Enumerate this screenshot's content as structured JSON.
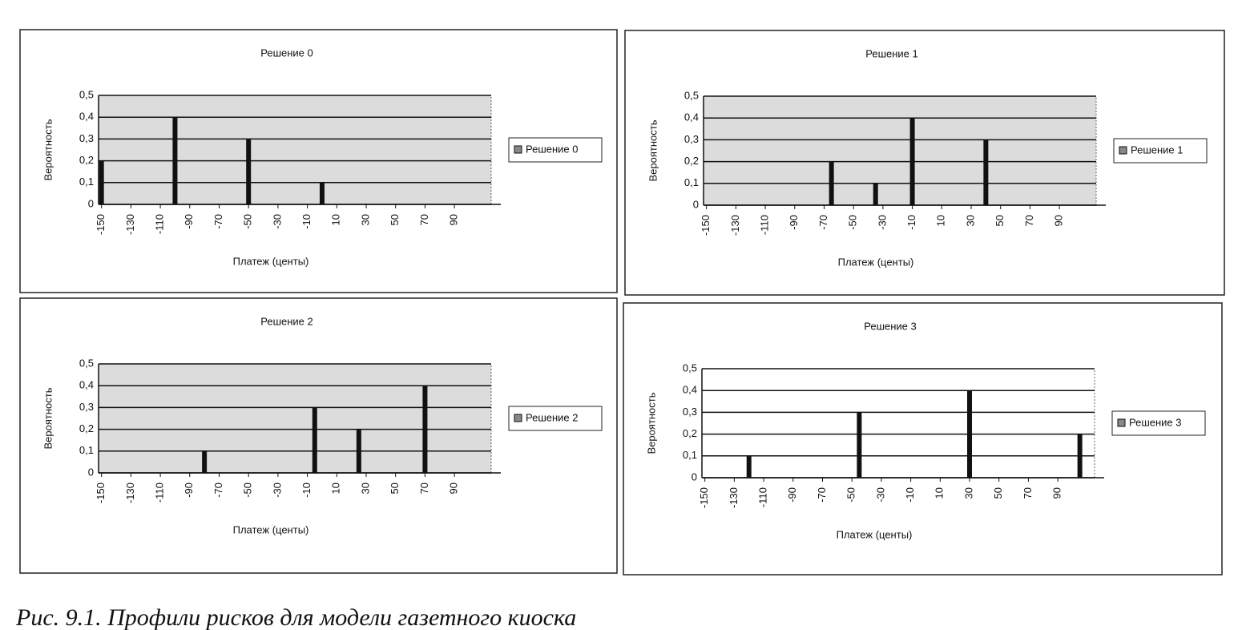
{
  "chart_data": [
    {
      "type": "bar",
      "title": "Решение 0",
      "xlabel": "Платеж (центы)",
      "ylabel": "Вероятность",
      "x": [
        -150,
        -100,
        -50,
        0
      ],
      "series": [
        {
          "name": "Решение 0",
          "color": "#111111",
          "values": [
            0.2,
            0.4,
            0.3,
            0.1
          ]
        }
      ],
      "xlim": [
        -152,
        115
      ],
      "xticks": [
        -150,
        -130,
        -110,
        -90,
        -70,
        -50,
        -30,
        -10,
        10,
        30,
        50,
        70,
        90
      ],
      "ylim": [
        0,
        0.5
      ],
      "yticks": [
        0,
        {
          "value": 0.1,
          "label": "0,1"
        },
        {
          "value": 0.2,
          "label": "0,2"
        },
        {
          "value": 0.3,
          "label": "0,3"
        },
        {
          "value": 0.4,
          "label": "0,4"
        },
        {
          "value": 0.5,
          "label": "0,5"
        }
      ],
      "grid": true,
      "plot_background": "#dcdcdc",
      "legend": "right"
    },
    {
      "type": "bar",
      "title": "Решение 1",
      "xlabel": "Платеж (центы)",
      "ylabel": "Вероятность",
      "x": [
        -65,
        -35,
        -10,
        40
      ],
      "series": [
        {
          "name": "Решение 1",
          "color": "#111111",
          "values": [
            0.2,
            0.1,
            0.4,
            0.3
          ]
        }
      ],
      "xlim": [
        -152,
        115
      ],
      "xticks": [
        -150,
        -130,
        -110,
        -90,
        -70,
        -50,
        -30,
        -10,
        10,
        30,
        50,
        70,
        90
      ],
      "ylim": [
        0,
        0.5
      ],
      "yticks": [
        0,
        {
          "value": 0.1,
          "label": "0,1"
        },
        {
          "value": 0.2,
          "label": "0,2"
        },
        {
          "value": 0.3,
          "label": "0,3"
        },
        {
          "value": 0.4,
          "label": "0,4"
        },
        {
          "value": 0.5,
          "label": "0,5"
        }
      ],
      "grid": true,
      "plot_background": "#dcdcdc",
      "legend": "right"
    },
    {
      "type": "bar",
      "title": "Решение 2",
      "xlabel": "Платеж (центы)",
      "ylabel": "Вероятность",
      "x": [
        -80,
        -5,
        25,
        70
      ],
      "series": [
        {
          "name": "Решение 2",
          "color": "#111111",
          "values": [
            0.1,
            0.3,
            0.2,
            0.4
          ]
        }
      ],
      "xlim": [
        -152,
        115
      ],
      "xticks": [
        -150,
        -130,
        -110,
        -90,
        -70,
        -50,
        -30,
        -10,
        10,
        30,
        50,
        70,
        90
      ],
      "ylim": [
        0,
        0.5
      ],
      "yticks": [
        0,
        {
          "value": 0.1,
          "label": "0,1"
        },
        {
          "value": 0.2,
          "label": "0,2"
        },
        {
          "value": 0.3,
          "label": "0,3"
        },
        {
          "value": 0.4,
          "label": "0,4"
        },
        {
          "value": 0.5,
          "label": "0,5"
        }
      ],
      "grid": true,
      "plot_background": "#dcdcdc",
      "legend": "right"
    },
    {
      "type": "bar",
      "title": "Решение 3",
      "xlabel": "Платеж (центы)",
      "ylabel": "Вероятность",
      "x": [
        -120,
        -45,
        30,
        105
      ],
      "series": [
        {
          "name": "Решение 3",
          "color": "#111111",
          "values": [
            0.1,
            0.3,
            0.4,
            0.2
          ]
        }
      ],
      "xlim": [
        -152,
        115
      ],
      "xticks": [
        -150,
        -130,
        -110,
        -90,
        -70,
        -50,
        -30,
        -10,
        10,
        30,
        50,
        70,
        90
      ],
      "ylim": [
        0,
        0.5
      ],
      "yticks": [
        0,
        {
          "value": 0.1,
          "label": "0,1"
        },
        {
          "value": 0.2,
          "label": "0,2"
        },
        {
          "value": 0.3,
          "label": "0,3"
        },
        {
          "value": 0.4,
          "label": "0,4"
        },
        {
          "value": 0.5,
          "label": "0,5"
        }
      ],
      "grid": true,
      "plot_background": "#ffffff",
      "legend": "right"
    }
  ],
  "caption": "Рис. 9.1. Профили рисков для модели газетного киоска"
}
